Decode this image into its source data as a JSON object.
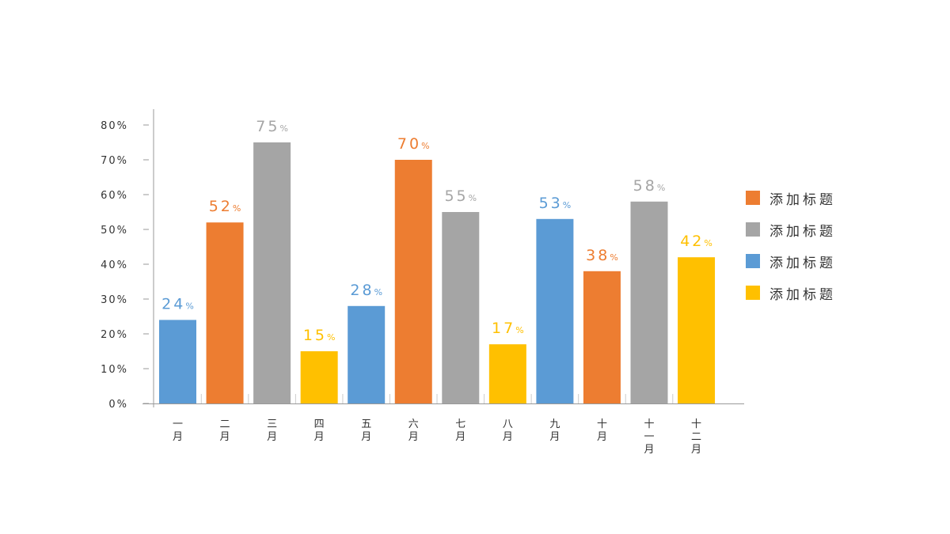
{
  "chart_data": {
    "type": "bar",
    "categories": [
      "一月",
      "二月",
      "三月",
      "四月",
      "五月",
      "六月",
      "七月",
      "八月",
      "九月",
      "十月",
      "十一月",
      "十二月"
    ],
    "values": [
      24,
      52,
      75,
      15,
      28,
      70,
      55,
      17,
      53,
      38,
      58,
      42
    ],
    "data_labels": [
      "24",
      "52",
      "75",
      "15",
      "28",
      "70",
      "55",
      "17",
      "53",
      "38",
      "58",
      "42"
    ],
    "data_label_unit": "%",
    "bar_colors": [
      "#5B9BD5",
      "#ED7D31",
      "#A5A5A5",
      "#FFC000",
      "#5B9BD5",
      "#ED7D31",
      "#A5A5A5",
      "#FFC000",
      "#5B9BD5",
      "#ED7D31",
      "#A5A5A5",
      "#FFC000"
    ],
    "yticks": [
      "0%",
      "10%",
      "20%",
      "30%",
      "40%",
      "50%",
      "60%",
      "70%",
      "80%"
    ],
    "ylim": [
      0,
      80
    ],
    "grid": false,
    "legend_position": "right",
    "legend": [
      {
        "label": "添加标题",
        "color": "#ED7D31"
      },
      {
        "label": "添加标题",
        "color": "#A5A5A5"
      },
      {
        "label": "添加标题",
        "color": "#5B9BD5"
      },
      {
        "label": "添加标题",
        "color": "#FFC000"
      }
    ]
  }
}
